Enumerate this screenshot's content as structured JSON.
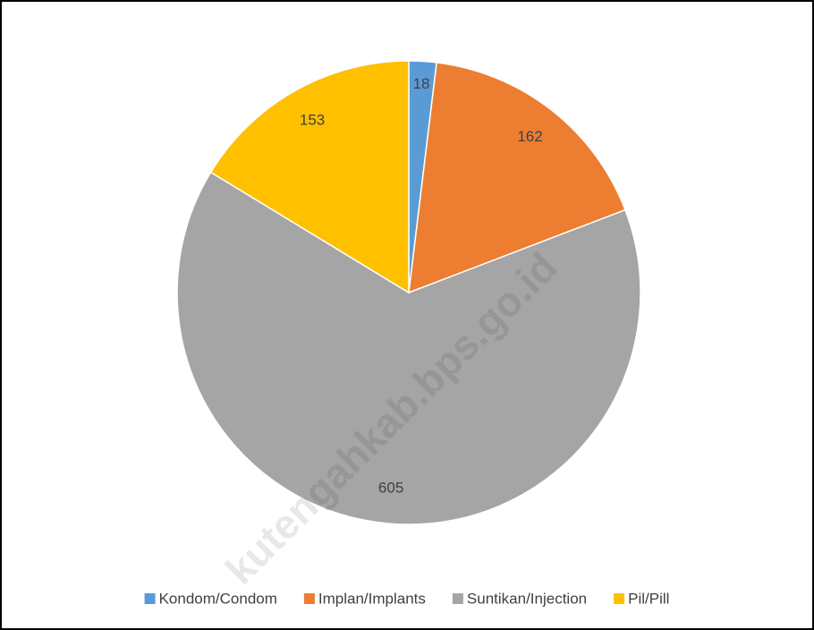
{
  "chart_data": {
    "type": "pie",
    "categories": [
      "Kondom/Condom",
      "Implan/Implants",
      "Suntikan/Injection",
      "Pil/Pill"
    ],
    "values": [
      18,
      162,
      605,
      153
    ],
    "colors": [
      "#5b9bd5",
      "#ed7d31",
      "#a5a5a5",
      "#ffc000"
    ],
    "legend": "bottom",
    "watermark": "kutengahkab.bps.go.id"
  }
}
